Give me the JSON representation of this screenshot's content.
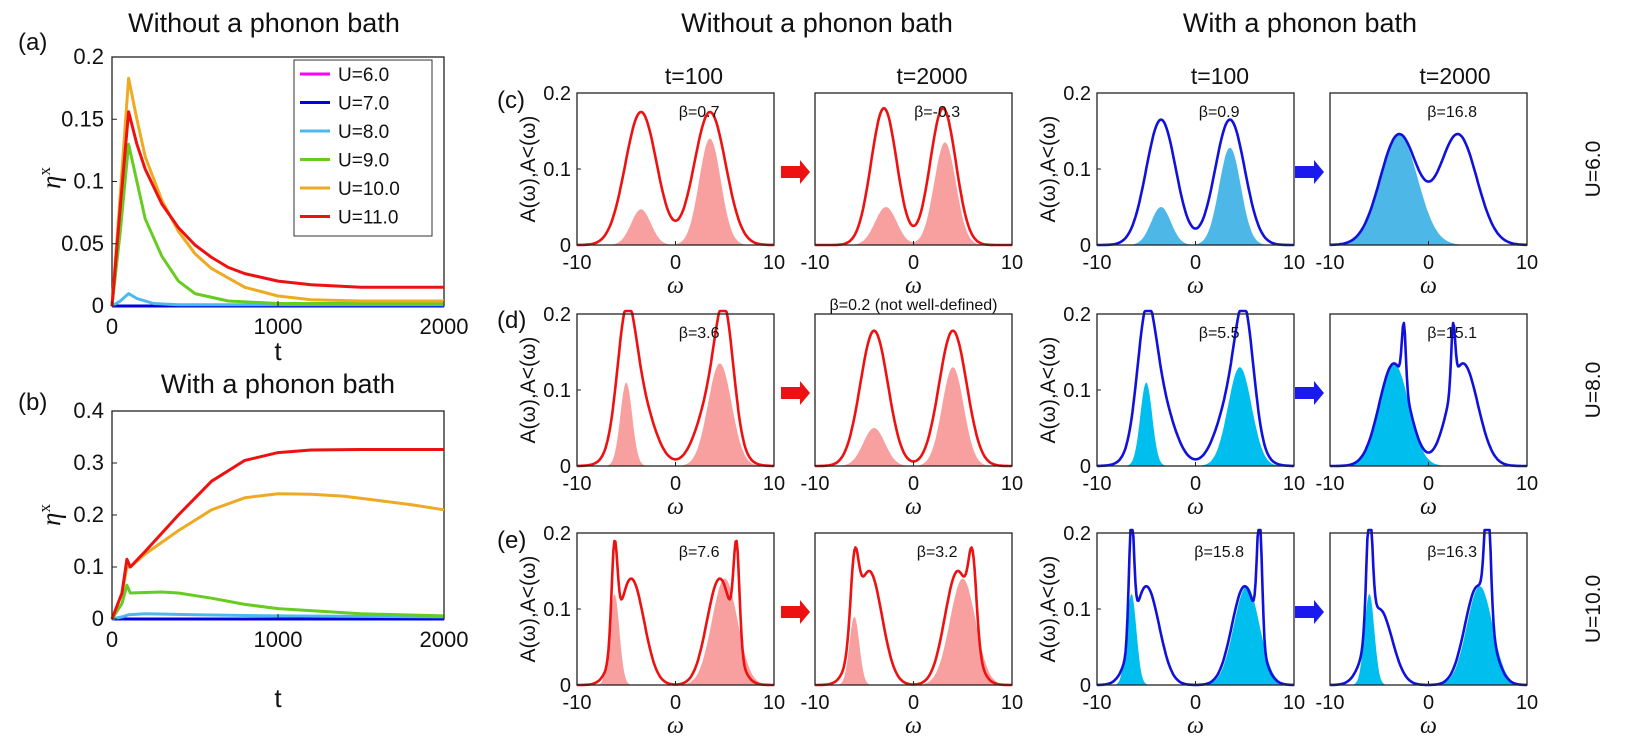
{
  "headers": {
    "a_title": "Without a phonon bath",
    "b_title": "With a phonon bath",
    "mid_title": "Without a phonon bath",
    "right_title": "With a phonon bath",
    "t100_left": "t=100",
    "t2000_left": "t=2000",
    "t100_right": "t=100",
    "t2000_right": "t=2000",
    "label_a": "(a)",
    "label_b": "(b)",
    "label_c": "(c)",
    "label_d": "(d)",
    "label_e": "(e)",
    "ylabel_spec": "A(ω),A<(ω)",
    "xlabel_spec": "ω",
    "ylabel_eta": "ηx",
    "xlabel_t": "t"
  },
  "rows": [
    {
      "U": "U=6.0",
      "yticks": [
        "0",
        "0.1",
        "0.2"
      ],
      "ymax": 0.2
    },
    {
      "U": "U=8.0",
      "yticks": [
        "0",
        "0.1",
        "0.2"
      ],
      "ymax": 0.2
    },
    {
      "U": "U=10.0",
      "yticks": [
        "0",
        "0.1",
        "0.2"
      ],
      "ymax": 0.2
    }
  ],
  "spectra_xticks": [
    "-10",
    "0",
    "10"
  ],
  "chart_data": [
    {
      "id": "a",
      "type": "line",
      "title": "Without a phonon bath",
      "xlabel": "t",
      "ylabel": "ηx",
      "xlim": [
        0,
        2000
      ],
      "ylim": [
        0,
        0.2
      ],
      "xticks": [
        0,
        1000,
        2000
      ],
      "yticks": [
        0,
        0.05,
        0.1,
        0.15,
        0.2
      ],
      "xtick_labels": [
        "0",
        "1000",
        "2000"
      ],
      "ytick_labels": [
        "0",
        "0.05",
        "0.1",
        "0.15",
        "0.2"
      ],
      "legend_position": "top-right",
      "series": [
        {
          "name": "U=6.0",
          "color": "#ff00ff",
          "points": [
            [
              0,
              0
            ],
            [
              2000,
              0
            ]
          ]
        },
        {
          "name": "U=7.0",
          "color": "#0000dd",
          "points": [
            [
              0,
              0
            ],
            [
              2000,
              0
            ]
          ]
        },
        {
          "name": "U=8.0",
          "color": "#4db8ee",
          "points": [
            [
              0,
              0
            ],
            [
              50,
              0.004
            ],
            [
              100,
              0.01
            ],
            [
              150,
              0.006
            ],
            [
              250,
              0.002
            ],
            [
              400,
              0.001
            ],
            [
              2000,
              0.001
            ]
          ]
        },
        {
          "name": "U=9.0",
          "color": "#66cc22",
          "points": [
            [
              0,
              0
            ],
            [
              50,
              0.06
            ],
            [
              100,
              0.13
            ],
            [
              150,
              0.1
            ],
            [
              200,
              0.07
            ],
            [
              300,
              0.04
            ],
            [
              400,
              0.02
            ],
            [
              500,
              0.01
            ],
            [
              700,
              0.004
            ],
            [
              1000,
              0.002
            ],
            [
              2000,
              0.002
            ]
          ]
        },
        {
          "name": "U=10.0",
          "color": "#eeaa22",
          "points": [
            [
              0,
              0
            ],
            [
              50,
              0.09
            ],
            [
              100,
              0.183
            ],
            [
              150,
              0.15
            ],
            [
              200,
              0.12
            ],
            [
              300,
              0.085
            ],
            [
              400,
              0.06
            ],
            [
              500,
              0.042
            ],
            [
              600,
              0.03
            ],
            [
              800,
              0.015
            ],
            [
              1000,
              0.008
            ],
            [
              1200,
              0.005
            ],
            [
              1500,
              0.004
            ],
            [
              2000,
              0.004
            ]
          ]
        },
        {
          "name": "U=11.0",
          "color": "#ee1111",
          "points": [
            [
              0,
              0
            ],
            [
              50,
              0.08
            ],
            [
              100,
              0.156
            ],
            [
              150,
              0.13
            ],
            [
              200,
              0.11
            ],
            [
              300,
              0.082
            ],
            [
              400,
              0.063
            ],
            [
              500,
              0.049
            ],
            [
              600,
              0.039
            ],
            [
              700,
              0.031
            ],
            [
              800,
              0.026
            ],
            [
              1000,
              0.02
            ],
            [
              1200,
              0.017
            ],
            [
              1500,
              0.015
            ],
            [
              2000,
              0.015
            ]
          ]
        }
      ]
    },
    {
      "id": "b",
      "type": "line",
      "title": "With a phonon bath",
      "xlabel": "t",
      "ylabel": "ηx",
      "xlim": [
        0,
        2000
      ],
      "ylim": [
        0,
        0.4
      ],
      "xticks": [
        0,
        1000,
        2000
      ],
      "yticks": [
        0,
        0.1,
        0.2,
        0.3,
        0.4
      ],
      "xtick_labels": [
        "0",
        "1000",
        "2000"
      ],
      "ytick_labels": [
        "0",
        "0.1",
        "0.2",
        "0.3",
        "0.4"
      ],
      "series": [
        {
          "name": "U=6.0",
          "color": "#ff00ff",
          "points": [
            [
              0,
              0
            ],
            [
              2000,
              0
            ]
          ]
        },
        {
          "name": "U=7.0",
          "color": "#0000dd",
          "points": [
            [
              0,
              0
            ],
            [
              2000,
              0
            ]
          ]
        },
        {
          "name": "U=8.0",
          "color": "#4db8ee",
          "points": [
            [
              0,
              0
            ],
            [
              60,
              0.004
            ],
            [
              100,
              0.008
            ],
            [
              200,
              0.01
            ],
            [
              500,
              0.008
            ],
            [
              1000,
              0.006
            ],
            [
              2000,
              0.004
            ]
          ]
        },
        {
          "name": "U=9.0",
          "color": "#66cc22",
          "points": [
            [
              0,
              0
            ],
            [
              60,
              0.03
            ],
            [
              90,
              0.065
            ],
            [
              110,
              0.05
            ],
            [
              200,
              0.051
            ],
            [
              300,
              0.052
            ],
            [
              400,
              0.05
            ],
            [
              600,
              0.04
            ],
            [
              800,
              0.028
            ],
            [
              1000,
              0.02
            ],
            [
              1500,
              0.01
            ],
            [
              2000,
              0.006
            ]
          ]
        },
        {
          "name": "U=10.0",
          "color": "#eeaa22",
          "points": [
            [
              0,
              0
            ],
            [
              60,
              0.05
            ],
            [
              90,
              0.1
            ],
            [
              110,
              0.1
            ],
            [
              200,
              0.125
            ],
            [
              400,
              0.17
            ],
            [
              600,
              0.21
            ],
            [
              800,
              0.233
            ],
            [
              1000,
              0.241
            ],
            [
              1200,
              0.24
            ],
            [
              1400,
              0.236
            ],
            [
              1600,
              0.228
            ],
            [
              1800,
              0.22
            ],
            [
              2000,
              0.21
            ]
          ]
        },
        {
          "name": "U=11.0",
          "color": "#ee1111",
          "points": [
            [
              0,
              0
            ],
            [
              60,
              0.05
            ],
            [
              90,
              0.115
            ],
            [
              110,
              0.1
            ],
            [
              200,
              0.13
            ],
            [
              400,
              0.2
            ],
            [
              600,
              0.265
            ],
            [
              800,
              0.305
            ],
            [
              1000,
              0.32
            ],
            [
              1200,
              0.325
            ],
            [
              1500,
              0.326
            ],
            [
              2000,
              0.326
            ]
          ]
        }
      ]
    },
    {
      "id": "spectra",
      "type": "area",
      "xlabel": "ω",
      "ylabel": "A(ω),A<(ω)",
      "xlim": [
        -10,
        10
      ],
      "panels": [
        {
          "row": 0,
          "col": 0,
          "beta": "β=0.7",
          "color": "#ee1111",
          "fill": "#f8a0a0",
          "A": [
            [
              -3.5,
              0.175,
              1.6
            ],
            [
              3.5,
              0.175,
              1.6
            ]
          ],
          "Aless": [
            [
              -3.5,
              0.047,
              1.0
            ],
            [
              3.5,
              0.14,
              1.1
            ]
          ]
        },
        {
          "row": 0,
          "col": 1,
          "beta": "β=-0.3",
          "color": "#ee1111",
          "fill": "#f8a0a0",
          "A": [
            [
              -3.0,
              0.18,
              1.3
            ],
            [
              3.0,
              0.18,
              1.3
            ]
          ],
          "Aless": [
            [
              -2.8,
              0.05,
              1.1
            ],
            [
              3.2,
              0.135,
              1.1
            ]
          ]
        },
        {
          "row": 0,
          "col": 2,
          "beta": "β=0.9",
          "color": "#1111dd",
          "fill": "#4db8e8",
          "A": [
            [
              -3.5,
              0.165,
              1.5
            ],
            [
              3.5,
              0.165,
              1.5
            ]
          ],
          "Aless": [
            [
              -3.5,
              0.05,
              1.0
            ],
            [
              3.5,
              0.128,
              1.1
            ]
          ]
        },
        {
          "row": 0,
          "col": 3,
          "beta": "β=16.8",
          "color": "#1111dd",
          "fill": "#4db8e8",
          "A": [
            [
              -3.0,
              0.145,
              1.9
            ],
            [
              3.0,
              0.145,
              1.9
            ]
          ],
          "Aless": [
            [
              -3.0,
              0.145,
              1.9
            ]
          ]
        },
        {
          "row": 1,
          "col": 0,
          "beta": "β=3.6",
          "color": "#ee1111",
          "fill": "#f8a0a0",
          "A": [
            [
              -5.0,
              0.13,
              0.9
            ],
            [
              -4.0,
              0.1,
              1.6
            ],
            [
              5.0,
              0.13,
              0.9
            ],
            [
              4.0,
              0.1,
              1.6
            ]
          ],
          "Aless": [
            [
              -5.0,
              0.11,
              0.6
            ],
            [
              4.5,
              0.135,
              1.2
            ]
          ]
        },
        {
          "row": 1,
          "col": 1,
          "beta": "β=0.2 (not well-defined)",
          "color": "#ee1111",
          "fill": "#f8a0a0",
          "A": [
            [
              -4.0,
              0.178,
              1.4
            ],
            [
              4.0,
              0.178,
              1.4
            ]
          ],
          "Aless": [
            [
              -4.0,
              0.05,
              1.1
            ],
            [
              4.0,
              0.13,
              1.1
            ]
          ]
        },
        {
          "row": 1,
          "col": 2,
          "beta": "β=5.5",
          "color": "#1111dd",
          "fill": "#00bfee",
          "A": [
            [
              -5.0,
              0.13,
              0.9
            ],
            [
              -4.0,
              0.1,
              1.6
            ],
            [
              5.0,
              0.13,
              0.9
            ],
            [
              4.0,
              0.1,
              1.6
            ]
          ],
          "Aless": [
            [
              -5.0,
              0.11,
              0.6
            ],
            [
              4.5,
              0.13,
              1.2
            ]
          ]
        },
        {
          "row": 1,
          "col": 3,
          "beta": "β=15.1",
          "color": "#1111dd",
          "fill": "#00bfee",
          "A": [
            [
              -3.5,
              0.135,
              1.5
            ],
            [
              -2.5,
              0.08,
              0.2
            ],
            [
              3.5,
              0.135,
              1.5
            ],
            [
              2.5,
              0.08,
              0.2
            ]
          ],
          "Aless": [
            [
              -3.5,
              0.135,
              1.5
            ]
          ]
        },
        {
          "row": 2,
          "col": 0,
          "beta": "β=7.6",
          "color": "#ee1111",
          "fill": "#f8a0a0",
          "A": [
            [
              -6.2,
              0.13,
              0.3
            ],
            [
              -4.5,
              0.14,
              1.3
            ],
            [
              6.2,
              0.13,
              0.3
            ],
            [
              4.5,
              0.14,
              1.3
            ]
          ],
          "Aless": [
            [
              -6.2,
              0.12,
              0.5
            ],
            [
              5.0,
              0.14,
              1.3
            ]
          ]
        },
        {
          "row": 2,
          "col": 1,
          "beta": "β=3.2",
          "color": "#ee1111",
          "fill": "#f8a0a0",
          "A": [
            [
              -6.0,
              0.1,
              0.4
            ],
            [
              -4.5,
              0.15,
              1.3
            ],
            [
              6.0,
              0.1,
              0.4
            ],
            [
              4.5,
              0.15,
              1.3
            ]
          ],
          "Aless": [
            [
              -6.0,
              0.09,
              0.5
            ],
            [
              5.0,
              0.14,
              1.3
            ]
          ]
        },
        {
          "row": 2,
          "col": 2,
          "beta": "β=15.8",
          "color": "#1111dd",
          "fill": "#00bfee",
          "A": [
            [
              -6.5,
              0.16,
              0.25
            ],
            [
              -5.0,
              0.13,
              1.3
            ],
            [
              6.5,
              0.16,
              0.25
            ],
            [
              5.0,
              0.13,
              1.3
            ]
          ],
          "Aless": [
            [
              -6.5,
              0.12,
              0.5
            ],
            [
              5.2,
              0.13,
              1.3
            ]
          ]
        },
        {
          "row": 2,
          "col": 3,
          "beta": "β=16.3",
          "color": "#1111dd",
          "fill": "#00bfee",
          "A": [
            [
              -6.0,
              0.16,
              0.3
            ],
            [
              -5.0,
              0.1,
              1.3
            ],
            [
              6.0,
              0.16,
              0.3
            ],
            [
              5.0,
              0.13,
              1.3
            ]
          ],
          "Aless": [
            [
              -6.0,
              0.12,
              0.5
            ],
            [
              5.2,
              0.13,
              1.3
            ]
          ]
        }
      ]
    }
  ]
}
